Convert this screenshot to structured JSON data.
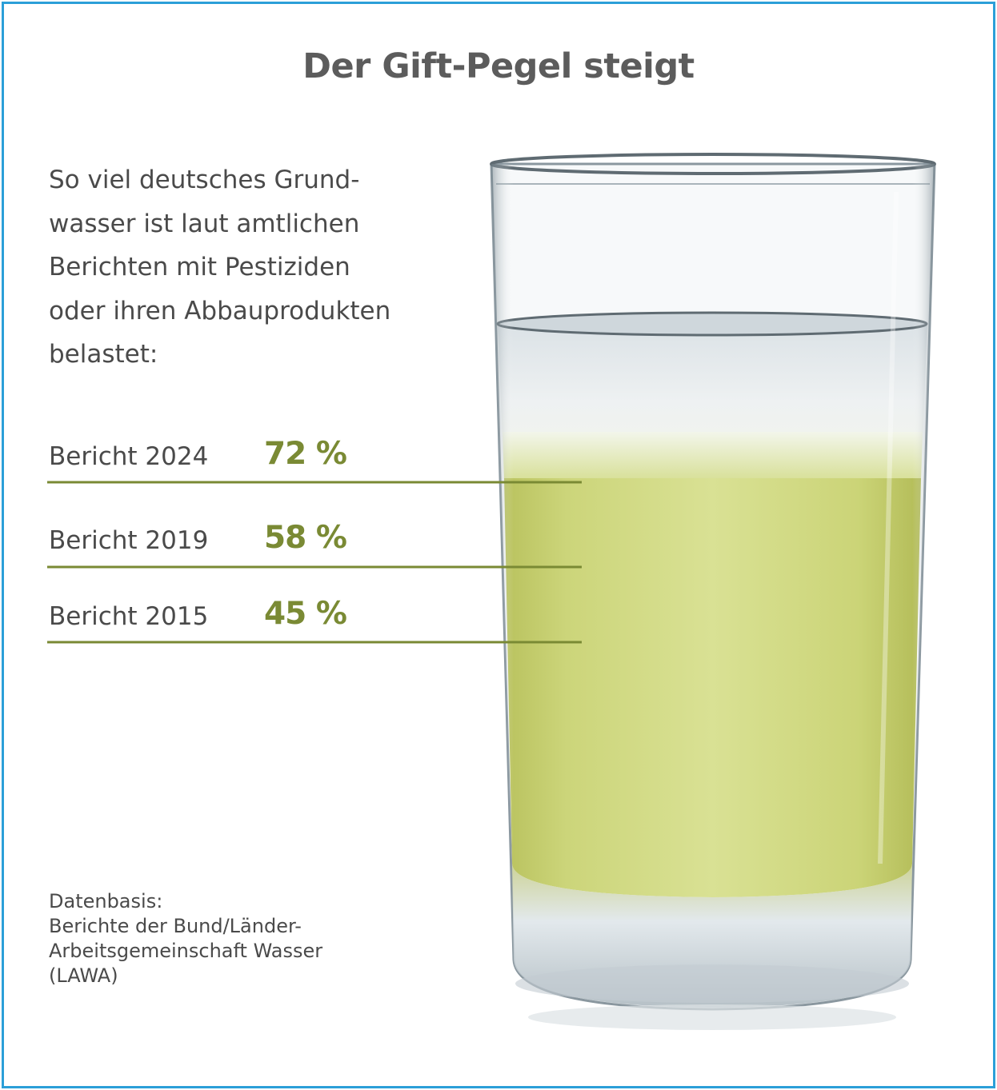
{
  "title": "Der Gift-Pegel steigt",
  "intro": "So viel deutsches Grund-\nwasser ist laut amtlichen\nBerichten mit Pestiziden\noder ihren Abbauprodukten\nbelastet:",
  "chart_data": {
    "type": "bar",
    "unit": "%",
    "categories": [
      "Bericht 2024",
      "Bericht 2019",
      "Bericht 2015"
    ],
    "values": [
      72,
      58,
      45
    ],
    "labels": [
      "72 %",
      "58 %",
      "45 %"
    ],
    "title": "Der Gift-Pegel steigt"
  },
  "source": {
    "heading": "Datenbasis:",
    "lines": [
      "Berichte der Bund/Länder-",
      "Arbeitsgemeinschaft Wasser",
      "(LAWA)"
    ]
  },
  "colors": {
    "frame": "#2b9fd8",
    "accent": "#7a8a34",
    "liquid": "#d1db86",
    "text": "#4a4a4a"
  }
}
